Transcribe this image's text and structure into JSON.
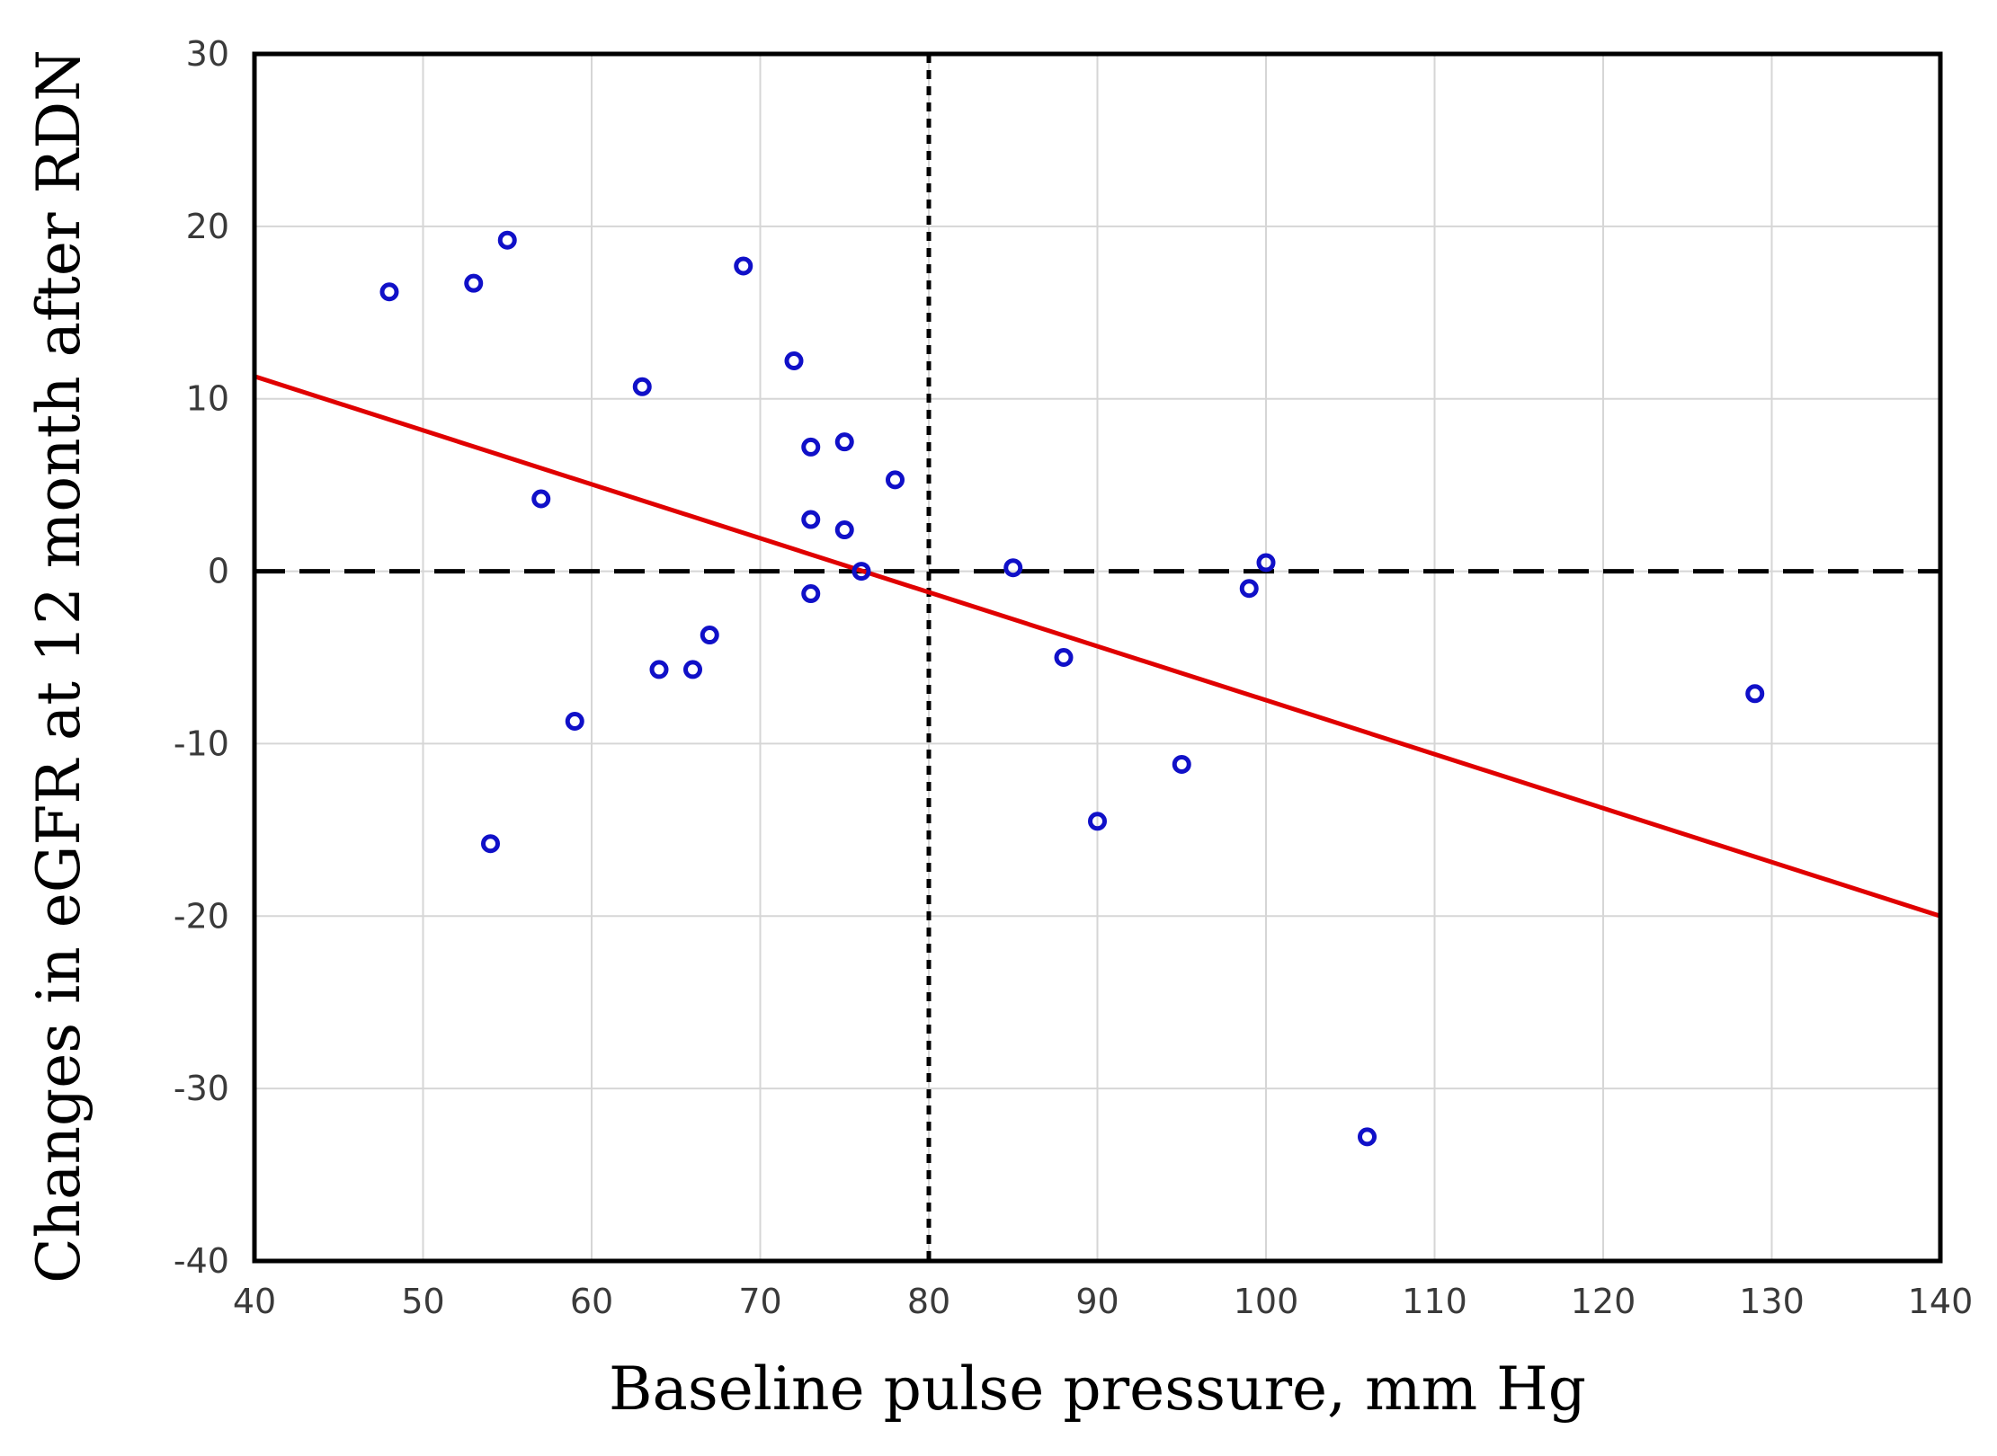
{
  "chart_data": {
    "type": "scatter",
    "xlabel": "Baseline pulse pressure, mm Hg",
    "ylabel": "Changes in eGFR at 12 month after RDN",
    "xlim": [
      40,
      140
    ],
    "ylim": [
      -40,
      30
    ],
    "xticks": [
      40,
      50,
      60,
      70,
      80,
      90,
      100,
      110,
      120,
      130,
      140
    ],
    "yticks": [
      30,
      20,
      10,
      0,
      -10,
      -20,
      -30,
      -40
    ],
    "grid": true,
    "points": [
      {
        "x": 48,
        "y": 16.2
      },
      {
        "x": 53,
        "y": 16.7
      },
      {
        "x": 55,
        "y": 19.2
      },
      {
        "x": 54,
        "y": -15.8
      },
      {
        "x": 57,
        "y": 4.2
      },
      {
        "x": 59,
        "y": -8.7
      },
      {
        "x": 63,
        "y": 10.7
      },
      {
        "x": 64,
        "y": -5.7
      },
      {
        "x": 66,
        "y": -5.7
      },
      {
        "x": 67,
        "y": -3.7
      },
      {
        "x": 69,
        "y": 17.7
      },
      {
        "x": 72,
        "y": 12.2
      },
      {
        "x": 73,
        "y": 7.2
      },
      {
        "x": 73,
        "y": 3.0
      },
      {
        "x": 73,
        "y": -1.3
      },
      {
        "x": 75,
        "y": 7.5
      },
      {
        "x": 75,
        "y": 2.4
      },
      {
        "x": 76,
        "y": 0.0
      },
      {
        "x": 78,
        "y": 5.3
      },
      {
        "x": 85,
        "y": 0.2
      },
      {
        "x": 88,
        "y": -5.0
      },
      {
        "x": 90,
        "y": -14.5
      },
      {
        "x": 95,
        "y": -11.2
      },
      {
        "x": 99,
        "y": -1.0
      },
      {
        "x": 100,
        "y": 0.5
      },
      {
        "x": 106,
        "y": -32.8
      },
      {
        "x": 129,
        "y": -7.1
      }
    ],
    "regression_line": {
      "x": [
        40,
        140
      ],
      "y": [
        11.3,
        -20.0
      ],
      "color": "#e00000"
    },
    "reference_lines": {
      "vertical_x": 80,
      "horizontal_y": 0
    }
  }
}
